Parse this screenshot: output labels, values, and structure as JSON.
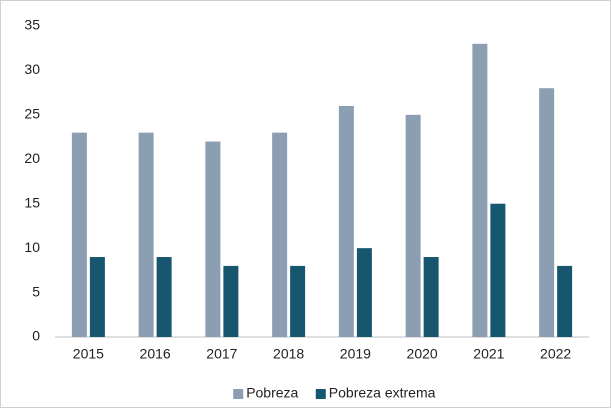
{
  "chart_data": {
    "type": "bar",
    "categories": [
      "2015",
      "2016",
      "2017",
      "2018",
      "2019",
      "2020",
      "2021",
      "2022"
    ],
    "series": [
      {
        "name": "Pobreza",
        "color": "#8c9fb2",
        "values": [
          23,
          23,
          22,
          23,
          26,
          25,
          33,
          28
        ]
      },
      {
        "name": "Pobreza extrema",
        "color": "#17566f",
        "values": [
          9,
          9,
          8,
          8,
          10,
          9,
          15,
          8
        ]
      }
    ],
    "ylim": [
      0,
      35
    ],
    "yticks": [
      0,
      5,
      10,
      15,
      20,
      25,
      30,
      35
    ],
    "grid": false,
    "legend": "bottom"
  }
}
